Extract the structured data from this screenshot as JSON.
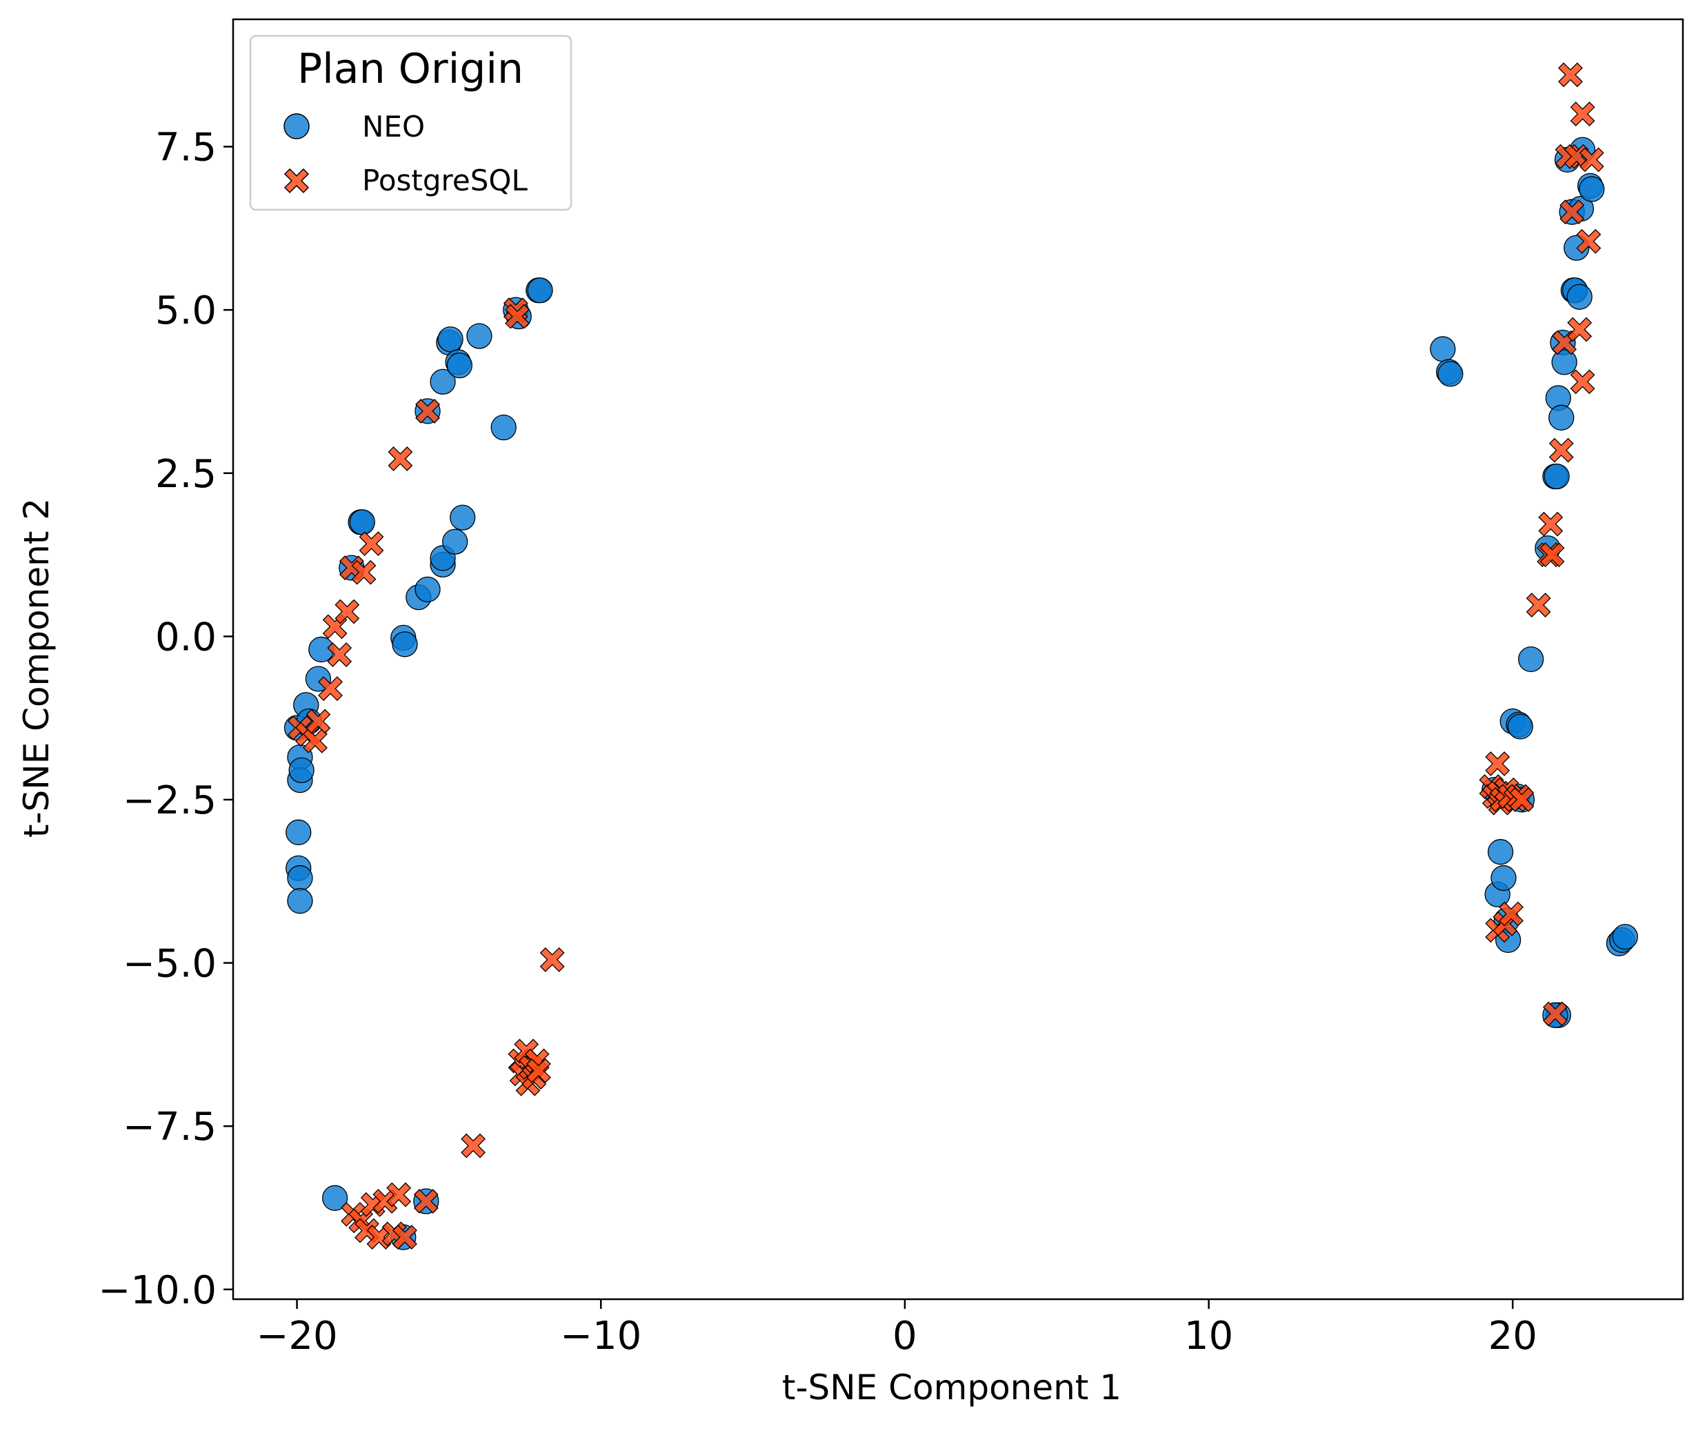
{
  "chart_data": {
    "type": "scatter",
    "xlabel": "t-SNE Component 1",
    "ylabel": "t-SNE Component 2",
    "xlim": [
      -22.1,
      25.6
    ],
    "ylim": [
      -10.15,
      9.45
    ],
    "xticks": [
      -20,
      -10,
      0,
      10,
      20
    ],
    "yticks": [
      -10.0,
      -7.5,
      -5.0,
      -2.5,
      0.0,
      2.5,
      5.0,
      7.5
    ],
    "xtick_labels": [
      "−20",
      "−10",
      "0",
      "10",
      "20"
    ],
    "ytick_labels": [
      "−10.0",
      "−7.5",
      "−5.0",
      "−2.5",
      "0.0",
      "2.5",
      "5.0",
      "7.5"
    ],
    "grid": false,
    "legend": {
      "title": "Plan Origin",
      "placement": "top-left",
      "entries": [
        "NEO",
        "PostgreSQL"
      ]
    },
    "series": [
      {
        "name": "NEO",
        "marker": "circle",
        "color": "#0a7bd4",
        "points": [
          [
            -20.0,
            -1.4
          ],
          [
            -19.9,
            -1.85
          ],
          [
            -19.9,
            -2.2
          ],
          [
            -19.85,
            -2.05
          ],
          [
            -19.95,
            -3.0
          ],
          [
            -19.95,
            -3.55
          ],
          [
            -19.9,
            -3.7
          ],
          [
            -19.9,
            -4.05
          ],
          [
            -19.7,
            -1.05
          ],
          [
            -19.6,
            -1.3
          ],
          [
            -19.3,
            -0.65
          ],
          [
            -19.2,
            -0.2
          ],
          [
            -18.75,
            -8.6
          ],
          [
            -18.2,
            1.05
          ],
          [
            -17.9,
            1.75
          ],
          [
            -17.85,
            1.75
          ],
          [
            -16.5,
            -0.02
          ],
          [
            -16.45,
            -0.12
          ],
          [
            -16.0,
            0.6
          ],
          [
            -15.7,
            0.72
          ],
          [
            -15.7,
            3.45
          ],
          [
            -15.75,
            -8.65
          ],
          [
            -16.5,
            -9.2
          ],
          [
            -15.2,
            1.1
          ],
          [
            -15.2,
            1.2
          ],
          [
            -15.2,
            3.9
          ],
          [
            -15.0,
            4.5
          ],
          [
            -14.95,
            4.55
          ],
          [
            -14.8,
            1.45
          ],
          [
            -14.7,
            4.2
          ],
          [
            -14.65,
            4.15
          ],
          [
            -14.55,
            1.82
          ],
          [
            -14.0,
            4.6
          ],
          [
            -13.2,
            3.2
          ],
          [
            -12.8,
            5.0
          ],
          [
            -12.7,
            4.9
          ],
          [
            -12.05,
            5.3
          ],
          [
            -12.0,
            5.3
          ],
          [
            17.7,
            4.4
          ],
          [
            17.9,
            4.05
          ],
          [
            17.95,
            4.02
          ],
          [
            19.4,
            -2.35
          ],
          [
            19.5,
            -3.95
          ],
          [
            19.6,
            -3.3
          ],
          [
            19.7,
            -3.7
          ],
          [
            19.8,
            -4.35
          ],
          [
            19.85,
            -4.65
          ],
          [
            20.0,
            -1.3
          ],
          [
            20.2,
            -1.35
          ],
          [
            20.25,
            -1.38
          ],
          [
            20.15,
            -2.45
          ],
          [
            20.3,
            -2.5
          ],
          [
            20.6,
            -0.35
          ],
          [
            21.15,
            1.35
          ],
          [
            21.4,
            2.45
          ],
          [
            21.45,
            2.45
          ],
          [
            21.5,
            3.65
          ],
          [
            21.6,
            3.35
          ],
          [
            21.65,
            4.5
          ],
          [
            21.7,
            4.2
          ],
          [
            21.5,
            -5.8
          ],
          [
            21.4,
            -5.8
          ],
          [
            21.8,
            7.3
          ],
          [
            21.95,
            6.5
          ],
          [
            22.0,
            5.3
          ],
          [
            22.05,
            5.3
          ],
          [
            22.1,
            5.95
          ],
          [
            22.2,
            5.2
          ],
          [
            22.25,
            6.55
          ],
          [
            22.3,
            7.45
          ],
          [
            22.55,
            6.9
          ],
          [
            22.6,
            6.85
          ],
          [
            23.5,
            -4.7
          ],
          [
            23.6,
            -4.65
          ],
          [
            23.7,
            -4.6
          ]
        ]
      },
      {
        "name": "PostgreSQL",
        "marker": "x",
        "color": "#ff4d1a",
        "points": [
          [
            -19.9,
            -1.4
          ],
          [
            -19.65,
            -1.5
          ],
          [
            -19.4,
            -1.6
          ],
          [
            -19.3,
            -1.3
          ],
          [
            -18.9,
            -0.8
          ],
          [
            -18.75,
            0.15
          ],
          [
            -18.6,
            -0.28
          ],
          [
            -18.35,
            0.38
          ],
          [
            -18.2,
            1.05
          ],
          [
            -17.8,
            0.98
          ],
          [
            -17.55,
            1.42
          ],
          [
            -16.6,
            2.72
          ],
          [
            -15.7,
            3.45
          ],
          [
            -18.15,
            -8.85
          ],
          [
            -17.9,
            -8.95
          ],
          [
            -17.7,
            -9.1
          ],
          [
            -17.5,
            -8.7
          ],
          [
            -17.3,
            -9.2
          ],
          [
            -17.1,
            -8.65
          ],
          [
            -16.8,
            -9.15
          ],
          [
            -16.65,
            -8.55
          ],
          [
            -16.45,
            -9.2
          ],
          [
            -15.75,
            -8.65
          ],
          [
            -14.2,
            -7.8
          ],
          [
            -12.8,
            5.0
          ],
          [
            -12.75,
            4.9
          ],
          [
            -12.65,
            -6.5
          ],
          [
            -12.6,
            -6.7
          ],
          [
            -12.45,
            -6.35
          ],
          [
            -12.4,
            -6.85
          ],
          [
            -12.3,
            -6.6
          ],
          [
            -12.2,
            -6.75
          ],
          [
            -12.1,
            -6.5
          ],
          [
            -12.05,
            -6.65
          ],
          [
            -11.6,
            -4.95
          ],
          [
            19.3,
            -2.3
          ],
          [
            19.4,
            -2.45
          ],
          [
            19.5,
            -1.95
          ],
          [
            19.55,
            -2.4
          ],
          [
            19.6,
            -2.55
          ],
          [
            19.65,
            -2.5
          ],
          [
            19.8,
            -2.35
          ],
          [
            19.9,
            -2.45
          ],
          [
            20.1,
            -2.5
          ],
          [
            20.2,
            -2.45
          ],
          [
            20.3,
            -2.5
          ],
          [
            19.5,
            -4.5
          ],
          [
            19.75,
            -4.4
          ],
          [
            19.95,
            -4.25
          ],
          [
            20.85,
            0.48
          ],
          [
            21.2,
            1.25
          ],
          [
            21.25,
            1.72
          ],
          [
            21.3,
            1.25
          ],
          [
            21.4,
            -5.78
          ],
          [
            21.6,
            2.85
          ],
          [
            21.7,
            4.5
          ],
          [
            21.8,
            7.35
          ],
          [
            21.9,
            8.6
          ],
          [
            21.95,
            6.5
          ],
          [
            22.1,
            7.35
          ],
          [
            22.2,
            4.7
          ],
          [
            22.3,
            3.9
          ],
          [
            22.3,
            8.0
          ],
          [
            22.5,
            6.05
          ],
          [
            22.6,
            7.3
          ]
        ]
      }
    ]
  }
}
